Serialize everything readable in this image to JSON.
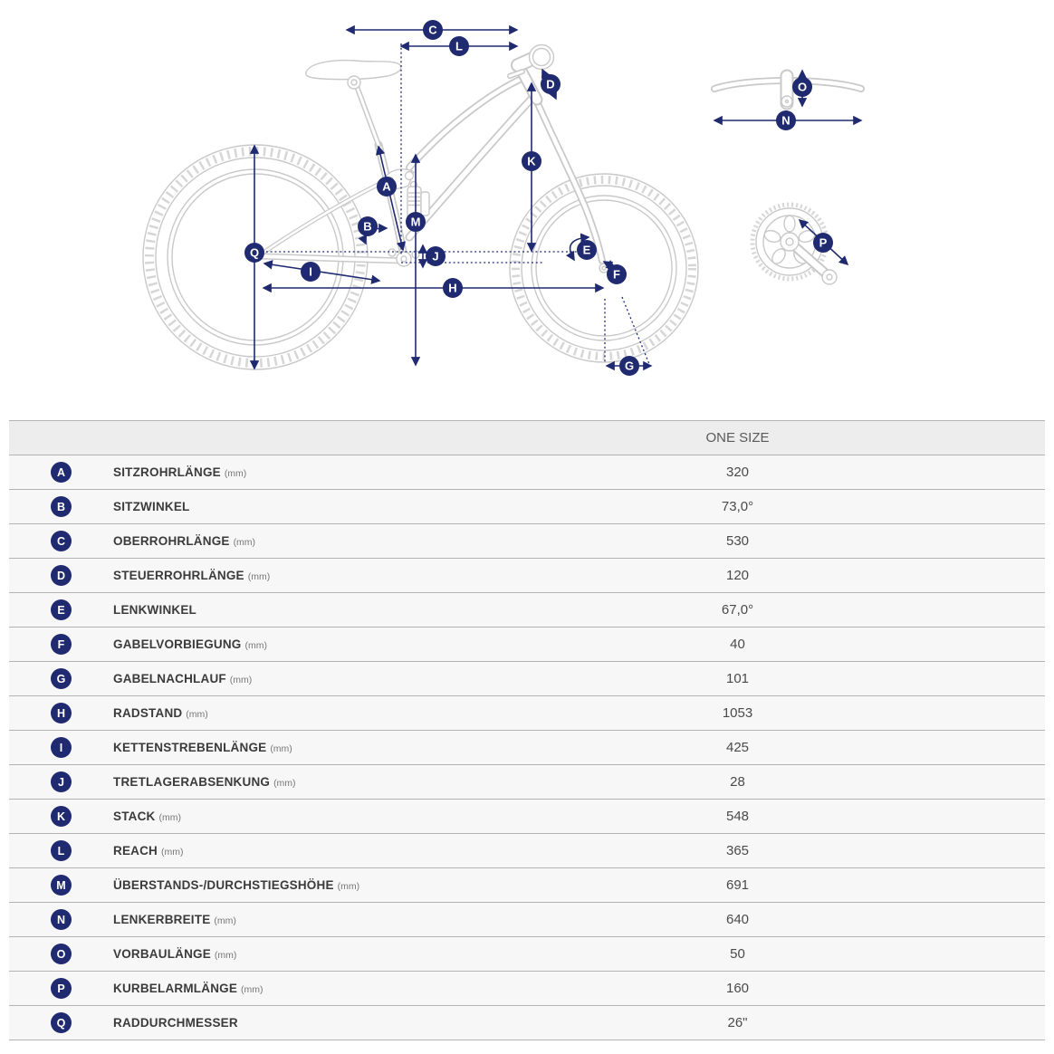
{
  "theme": {
    "accent": "#1f2a70",
    "diagram_line": "#c9c9c9",
    "row_bg": "#f7f7f7",
    "header_bg": "#ededed",
    "border": "#b4b4b4"
  },
  "diagram": {
    "description": "bike-geometry-diagram",
    "badge_letters": [
      "A",
      "B",
      "C",
      "D",
      "E",
      "F",
      "G",
      "H",
      "I",
      "J",
      "K",
      "L",
      "M",
      "N",
      "O",
      "P",
      "Q"
    ]
  },
  "table": {
    "size_header": "ONE SIZE",
    "rows": [
      {
        "letter": "A",
        "label": "SITZROHRLÄNGE",
        "unit": "(mm)",
        "value": "320"
      },
      {
        "letter": "B",
        "label": "SITZWINKEL",
        "unit": "",
        "value": "73,0°"
      },
      {
        "letter": "C",
        "label": "OBERROHRLÄNGE",
        "unit": "(mm)",
        "value": "530"
      },
      {
        "letter": "D",
        "label": "STEUERROHRLÄNGE",
        "unit": "(mm)",
        "value": "120"
      },
      {
        "letter": "E",
        "label": "LENKWINKEL",
        "unit": "",
        "value": "67,0°"
      },
      {
        "letter": "F",
        "label": "GABELVORBIEGUNG",
        "unit": "(mm)",
        "value": "40"
      },
      {
        "letter": "G",
        "label": "GABELNACHLAUF",
        "unit": "(mm)",
        "value": "101"
      },
      {
        "letter": "H",
        "label": "RADSTAND",
        "unit": "(mm)",
        "value": "1053"
      },
      {
        "letter": "I",
        "label": "KETTENSTREBENLÄNGE",
        "unit": "(mm)",
        "value": "425"
      },
      {
        "letter": "J",
        "label": "TRETLAGERABSENKUNG",
        "unit": "(mm)",
        "value": "28"
      },
      {
        "letter": "K",
        "label": "STACK",
        "unit": "(mm)",
        "value": "548"
      },
      {
        "letter": "L",
        "label": "REACH",
        "unit": "(mm)",
        "value": "365"
      },
      {
        "letter": "M",
        "label": "ÜBERSTANDS-/DURCHSTIEGSHÖHE",
        "unit": "(mm)",
        "value": "691"
      },
      {
        "letter": "N",
        "label": "LENKERBREITE",
        "unit": "(mm)",
        "value": "640"
      },
      {
        "letter": "O",
        "label": "VORBAULÄNGE",
        "unit": "(mm)",
        "value": "50"
      },
      {
        "letter": "P",
        "label": "KURBELARMLÄNGE",
        "unit": "(mm)",
        "value": "160"
      },
      {
        "letter": "Q",
        "label": "RADDURCHMESSER",
        "unit": "",
        "value": "26\""
      }
    ]
  }
}
